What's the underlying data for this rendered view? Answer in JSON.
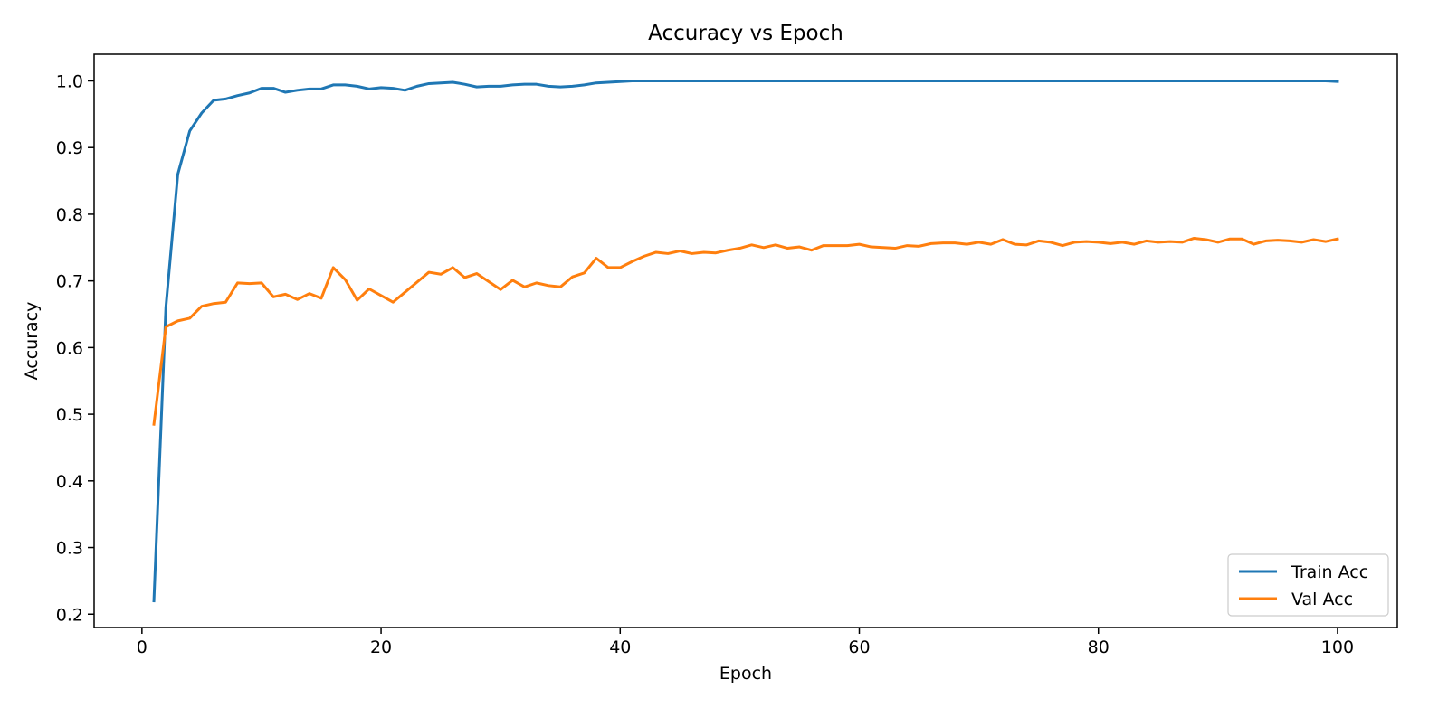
{
  "chart_data": {
    "type": "line",
    "title": "Accuracy vs Epoch",
    "xlabel": "Epoch",
    "ylabel": "Accuracy",
    "xlim": [
      -4,
      105
    ],
    "ylim": [
      0.18,
      1.04
    ],
    "xticks": [
      0,
      20,
      40,
      60,
      80,
      100
    ],
    "yticks": [
      0.2,
      0.3,
      0.4,
      0.5,
      0.6,
      0.7,
      0.8,
      0.9,
      1.0
    ],
    "grid": false,
    "legend": "lower-right",
    "x": [
      1,
      2,
      3,
      4,
      5,
      6,
      7,
      8,
      9,
      10,
      11,
      12,
      13,
      14,
      15,
      16,
      17,
      18,
      19,
      20,
      21,
      22,
      23,
      24,
      25,
      26,
      27,
      28,
      29,
      30,
      31,
      32,
      33,
      34,
      35,
      36,
      37,
      38,
      39,
      40,
      41,
      42,
      43,
      44,
      45,
      46,
      47,
      48,
      49,
      50,
      51,
      52,
      53,
      54,
      55,
      56,
      57,
      58,
      59,
      60,
      61,
      62,
      63,
      64,
      65,
      66,
      67,
      68,
      69,
      70,
      71,
      72,
      73,
      74,
      75,
      76,
      77,
      78,
      79,
      80,
      81,
      82,
      83,
      84,
      85,
      86,
      87,
      88,
      89,
      90,
      91,
      92,
      93,
      94,
      95,
      96,
      97,
      98,
      99,
      100
    ],
    "series": [
      {
        "name": "Train Acc",
        "color": "#1f77b4",
        "values": [
          0.22,
          0.66,
          0.86,
          0.925,
          0.952,
          0.971,
          0.973,
          0.978,
          0.982,
          0.989,
          0.989,
          0.983,
          0.986,
          0.988,
          0.988,
          0.994,
          0.994,
          0.992,
          0.988,
          0.99,
          0.989,
          0.986,
          0.992,
          0.996,
          0.997,
          0.998,
          0.995,
          0.991,
          0.992,
          0.992,
          0.994,
          0.995,
          0.995,
          0.992,
          0.991,
          0.992,
          0.994,
          0.997,
          0.998,
          0.999,
          1.0,
          1.0,
          1.0,
          1.0,
          1.0,
          1.0,
          1.0,
          1.0,
          1.0,
          1.0,
          1.0,
          1.0,
          1.0,
          1.0,
          1.0,
          1.0,
          1.0,
          1.0,
          1.0,
          1.0,
          1.0,
          1.0,
          1.0,
          1.0,
          1.0,
          1.0,
          1.0,
          1.0,
          1.0,
          1.0,
          1.0,
          1.0,
          1.0,
          1.0,
          1.0,
          1.0,
          1.0,
          1.0,
          1.0,
          1.0,
          1.0,
          1.0,
          1.0,
          1.0,
          1.0,
          1.0,
          1.0,
          1.0,
          1.0,
          1.0,
          1.0,
          1.0,
          1.0,
          1.0,
          1.0,
          1.0,
          1.0,
          1.0,
          1.0,
          0.999
        ]
      },
      {
        "name": "Val Acc",
        "color": "#ff7f0e",
        "values": [
          0.485,
          0.631,
          0.64,
          0.644,
          0.662,
          0.666,
          0.668,
          0.697,
          0.696,
          0.697,
          0.676,
          0.68,
          0.672,
          0.681,
          0.674,
          0.72,
          0.702,
          0.671,
          0.688,
          0.678,
          0.668,
          0.683,
          0.698,
          0.713,
          0.71,
          0.72,
          0.705,
          0.711,
          0.699,
          0.687,
          0.701,
          0.691,
          0.697,
          0.693,
          0.691,
          0.706,
          0.712,
          0.734,
          0.72,
          0.72,
          0.729,
          0.737,
          0.743,
          0.741,
          0.745,
          0.741,
          0.743,
          0.742,
          0.746,
          0.749,
          0.754,
          0.75,
          0.754,
          0.749,
          0.751,
          0.746,
          0.753,
          0.753,
          0.753,
          0.755,
          0.751,
          0.75,
          0.749,
          0.753,
          0.752,
          0.756,
          0.757,
          0.757,
          0.755,
          0.758,
          0.755,
          0.762,
          0.755,
          0.754,
          0.76,
          0.758,
          0.753,
          0.758,
          0.759,
          0.758,
          0.756,
          0.758,
          0.755,
          0.76,
          0.758,
          0.759,
          0.758,
          0.764,
          0.762,
          0.758,
          0.763,
          0.763,
          0.755,
          0.76,
          0.761,
          0.76,
          0.758,
          0.762,
          0.759,
          0.763
        ]
      }
    ]
  }
}
